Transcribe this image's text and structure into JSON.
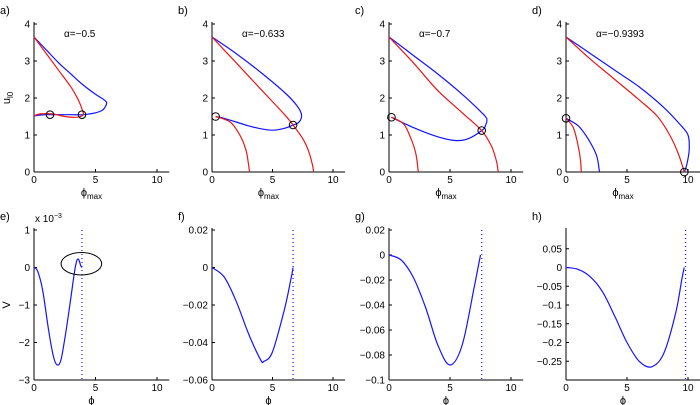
{
  "colors": {
    "blue": "#1414ff",
    "red": "#e81818",
    "marker": "#000000"
  },
  "chart_data": [
    {
      "panel": "a)",
      "type": "line",
      "annotation": "α=−0.5",
      "xlabel": "ϕ",
      "xlabel_sub": "max",
      "ylabel": "u",
      "ylabel_sub": "l0",
      "xlim": [
        0,
        11
      ],
      "ylim": [
        0,
        4
      ],
      "xticks": [
        "0",
        "5",
        "10"
      ],
      "xtick_values": [
        0,
        5,
        10
      ],
      "yticks": [
        "0",
        "1",
        "2",
        "3",
        "4"
      ],
      "ytick_values": [
        0,
        1,
        2,
        3,
        4
      ],
      "series": [
        {
          "color": "blue",
          "x": [
            0,
            1,
            2,
            3,
            4,
            5,
            5.7,
            5.9,
            5.6,
            5,
            4,
            3,
            2,
            1,
            0
          ],
          "y": [
            3.65,
            3.3,
            2.95,
            2.65,
            2.35,
            2.1,
            1.95,
            1.85,
            1.68,
            1.6,
            1.55,
            1.55,
            1.55,
            1.55,
            1.52
          ]
        },
        {
          "color": "red",
          "x": [
            0,
            1,
            2,
            3,
            3.6,
            3.9,
            4,
            3.5,
            2.5,
            1.5,
            0.5,
            0
          ],
          "y": [
            3.65,
            3.2,
            2.75,
            2.3,
            1.95,
            1.7,
            1.55,
            1.48,
            1.5,
            1.57,
            1.57,
            1.52
          ]
        }
      ],
      "markers": [
        [
          1.3,
          1.55
        ],
        [
          3.9,
          1.55
        ]
      ]
    },
    {
      "panel": "b)",
      "type": "line",
      "annotation": "α=−0.633",
      "xlabel": "ϕ",
      "xlabel_sub": "max",
      "xlim": [
        0,
        11
      ],
      "ylim": [
        0,
        4
      ],
      "xticks": [
        "0",
        "5",
        "10"
      ],
      "xtick_values": [
        0,
        5,
        10
      ],
      "yticks": [
        "0",
        "1",
        "2",
        "3",
        "4"
      ],
      "ytick_values": [
        0,
        1,
        2,
        3,
        4
      ],
      "series": [
        {
          "color": "blue",
          "x": [
            0,
            2,
            4,
            6,
            7,
            7.4,
            7.2,
            6.7,
            6,
            5,
            4,
            3,
            2,
            1,
            0.3
          ],
          "y": [
            3.65,
            3.2,
            2.7,
            2.15,
            1.8,
            1.55,
            1.35,
            1.27,
            1.18,
            1.13,
            1.17,
            1.25,
            1.35,
            1.45,
            1.5
          ]
        },
        {
          "color": "red",
          "x": [
            0,
            2,
            4,
            6,
            6.7,
            7.5,
            8,
            8.3,
            8.4
          ],
          "y": [
            3.65,
            2.95,
            2.25,
            1.55,
            1.27,
            0.9,
            0.55,
            0.2,
            0
          ]
        },
        {
          "color": "red",
          "x": [
            0.3,
            1.5,
            2.3,
            2.8,
            3.0,
            3.1
          ],
          "y": [
            1.5,
            1.35,
            1.0,
            0.6,
            0.25,
            0
          ]
        }
      ],
      "markers": [
        [
          0.3,
          1.5
        ],
        [
          6.7,
          1.27
        ]
      ]
    },
    {
      "panel": "c)",
      "type": "line",
      "annotation": "α=−0.7",
      "xlabel": "ϕ",
      "xlabel_sub": "max",
      "xlim": [
        0,
        11
      ],
      "ylim": [
        0,
        4
      ],
      "xticks": [
        "0",
        "5",
        "10"
      ],
      "xtick_values": [
        0,
        5,
        10
      ],
      "yticks": [
        "0",
        "1",
        "2",
        "3",
        "4"
      ],
      "ytick_values": [
        0,
        1,
        2,
        3,
        4
      ],
      "series": [
        {
          "color": "blue",
          "x": [
            0,
            2,
            4,
            6,
            7.3,
            8,
            7.9,
            7.6,
            6.5,
            5.5,
            4,
            2,
            0.2
          ],
          "y": [
            3.65,
            3.15,
            2.65,
            2.1,
            1.7,
            1.45,
            1.25,
            1.12,
            0.9,
            0.85,
            0.95,
            1.2,
            1.48
          ]
        },
        {
          "color": "red",
          "x": [
            0,
            2,
            4,
            6,
            7.6,
            8.4,
            8.8,
            8.95
          ],
          "y": [
            3.65,
            2.95,
            2.2,
            1.6,
            1.12,
            0.7,
            0.3,
            0
          ]
        },
        {
          "color": "red",
          "x": [
            0.2,
            1.2,
            1.8,
            2.2,
            2.4
          ],
          "y": [
            1.48,
            1.3,
            0.9,
            0.5,
            0
          ]
        }
      ],
      "markers": [
        [
          0.2,
          1.48
        ],
        [
          7.6,
          1.12
        ]
      ]
    },
    {
      "panel": "d)",
      "type": "line",
      "annotation": "α=−0.9393",
      "xlabel": "ϕ",
      "xlabel_sub": "max",
      "xlim": [
        0,
        11
      ],
      "ylim": [
        0,
        4
      ],
      "xticks": [
        "0",
        "5",
        "10"
      ],
      "xtick_values": [
        0,
        5,
        10
      ],
      "yticks": [
        "0",
        "1",
        "2",
        "3",
        "4"
      ],
      "ytick_values": [
        0,
        1,
        2,
        3,
        4
      ],
      "series": [
        {
          "color": "blue",
          "x": [
            0,
            2,
            4,
            6,
            8,
            9.3,
            10,
            10.1,
            9.9,
            9.7
          ],
          "y": [
            3.65,
            3.2,
            2.75,
            2.3,
            1.75,
            1.3,
            1.0,
            0.6,
            0.2,
            0
          ]
        },
        {
          "color": "red",
          "x": [
            0,
            2,
            4,
            6,
            7.5,
            8.5,
            9.2,
            9.7
          ],
          "y": [
            3.65,
            3.05,
            2.5,
            1.95,
            1.5,
            1.0,
            0.5,
            0
          ]
        },
        {
          "color": "blue",
          "x": [
            0,
            1,
            1.8,
            2.5,
            2.75
          ],
          "y": [
            1.45,
            1.25,
            0.9,
            0.45,
            0
          ]
        },
        {
          "color": "red",
          "x": [
            0,
            0.6,
            1.0,
            1.2,
            1.25
          ],
          "y": [
            1.45,
            1.2,
            0.7,
            0.3,
            0
          ]
        }
      ],
      "markers": [
        [
          0,
          1.45
        ],
        [
          9.7,
          0
        ]
      ]
    },
    {
      "panel": "e)",
      "type": "line",
      "xlabel": "ϕ",
      "ylabel": "V",
      "yscale_label": "x 10",
      "yscale_exp": "−3",
      "xlim": [
        0,
        11
      ],
      "ylim": [
        -3,
        1
      ],
      "xticks": [
        "0",
        "5",
        "10"
      ],
      "xtick_values": [
        0,
        5,
        10
      ],
      "yticks": [
        "−3",
        "−2",
        "−1",
        "0",
        "1"
      ],
      "ytick_values": [
        -3,
        -2,
        -1,
        0,
        1
      ],
      "series": [
        {
          "color": "blue",
          "x": [
            0,
            0.3,
            0.7,
            1.2,
            1.6,
            1.9,
            2.2,
            2.6,
            3.0,
            3.3,
            3.5,
            3.65,
            3.8,
            3.9
          ],
          "y": [
            0,
            -0.1,
            -0.6,
            -1.7,
            -2.4,
            -2.6,
            -2.45,
            -1.7,
            -0.8,
            -0.1,
            0.2,
            0.2,
            0.05,
            0
          ]
        }
      ],
      "dotted_x": 3.9,
      "ellipse": {
        "cx": 3.85,
        "cy": 0.1,
        "rx": 1.65,
        "ry": 0.3
      }
    },
    {
      "panel": "f)",
      "type": "line",
      "xlabel": "ϕ",
      "xlim": [
        0,
        11
      ],
      "ylim": [
        -0.06,
        0.02
      ],
      "xticks": [
        "0",
        "5",
        "10"
      ],
      "xtick_values": [
        0,
        5,
        10
      ],
      "yticks": [
        "−0.06",
        "−0.04",
        "−0.02",
        "0",
        "0.02"
      ],
      "ytick_values": [
        -0.06,
        -0.04,
        -0.02,
        0,
        0.02
      ],
      "series": [
        {
          "color": "blue",
          "x": [
            0,
            1,
            2,
            3,
            4,
            4.3,
            5,
            6,
            6.5,
            6.7
          ],
          "y": [
            0,
            -0.005,
            -0.018,
            -0.035,
            -0.049,
            -0.05,
            -0.045,
            -0.022,
            -0.007,
            0
          ]
        }
      ],
      "dotted_x": 6.7
    },
    {
      "panel": "g)",
      "type": "line",
      "xlabel": "ϕ",
      "xlim": [
        0,
        11
      ],
      "ylim": [
        -0.1,
        0.02
      ],
      "xticks": [
        "0",
        "5",
        "10"
      ],
      "xtick_values": [
        0,
        5,
        10
      ],
      "yticks": [
        "−0.1",
        "−0.08",
        "−0.06",
        "−0.04",
        "−0.02",
        "0",
        "0.02"
      ],
      "ytick_values": [
        -0.1,
        -0.08,
        -0.06,
        -0.04,
        -0.02,
        0,
        0.02
      ],
      "series": [
        {
          "color": "blue",
          "x": [
            0,
            1,
            2,
            3,
            4,
            5,
            6,
            7,
            7.5
          ],
          "y": [
            0,
            -0.004,
            -0.018,
            -0.042,
            -0.072,
            -0.088,
            -0.072,
            -0.025,
            0
          ]
        }
      ],
      "dotted_x": 7.6
    },
    {
      "panel": "h)",
      "type": "line",
      "xlabel": "ϕ",
      "xlim": [
        0,
        11
      ],
      "ylim": [
        -0.3,
        0.1
      ],
      "xticks": [
        "0",
        "5",
        "10"
      ],
      "xtick_values": [
        0,
        5,
        10
      ],
      "yticks": [
        "−0.25",
        "−0.2",
        "−0.15",
        "−0.1",
        "−0.05",
        "0",
        "0.05"
      ],
      "ytick_values": [
        -0.25,
        -0.2,
        -0.15,
        -0.1,
        -0.05,
        0,
        0.05
      ],
      "series": [
        {
          "color": "blue",
          "x": [
            0,
            1,
            2,
            3,
            4,
            5,
            6,
            7,
            8,
            9,
            9.5,
            9.7
          ],
          "y": [
            0,
            -0.005,
            -0.025,
            -0.065,
            -0.13,
            -0.2,
            -0.25,
            -0.265,
            -0.23,
            -0.12,
            -0.03,
            0
          ]
        }
      ],
      "dotted_x": 9.8
    }
  ]
}
